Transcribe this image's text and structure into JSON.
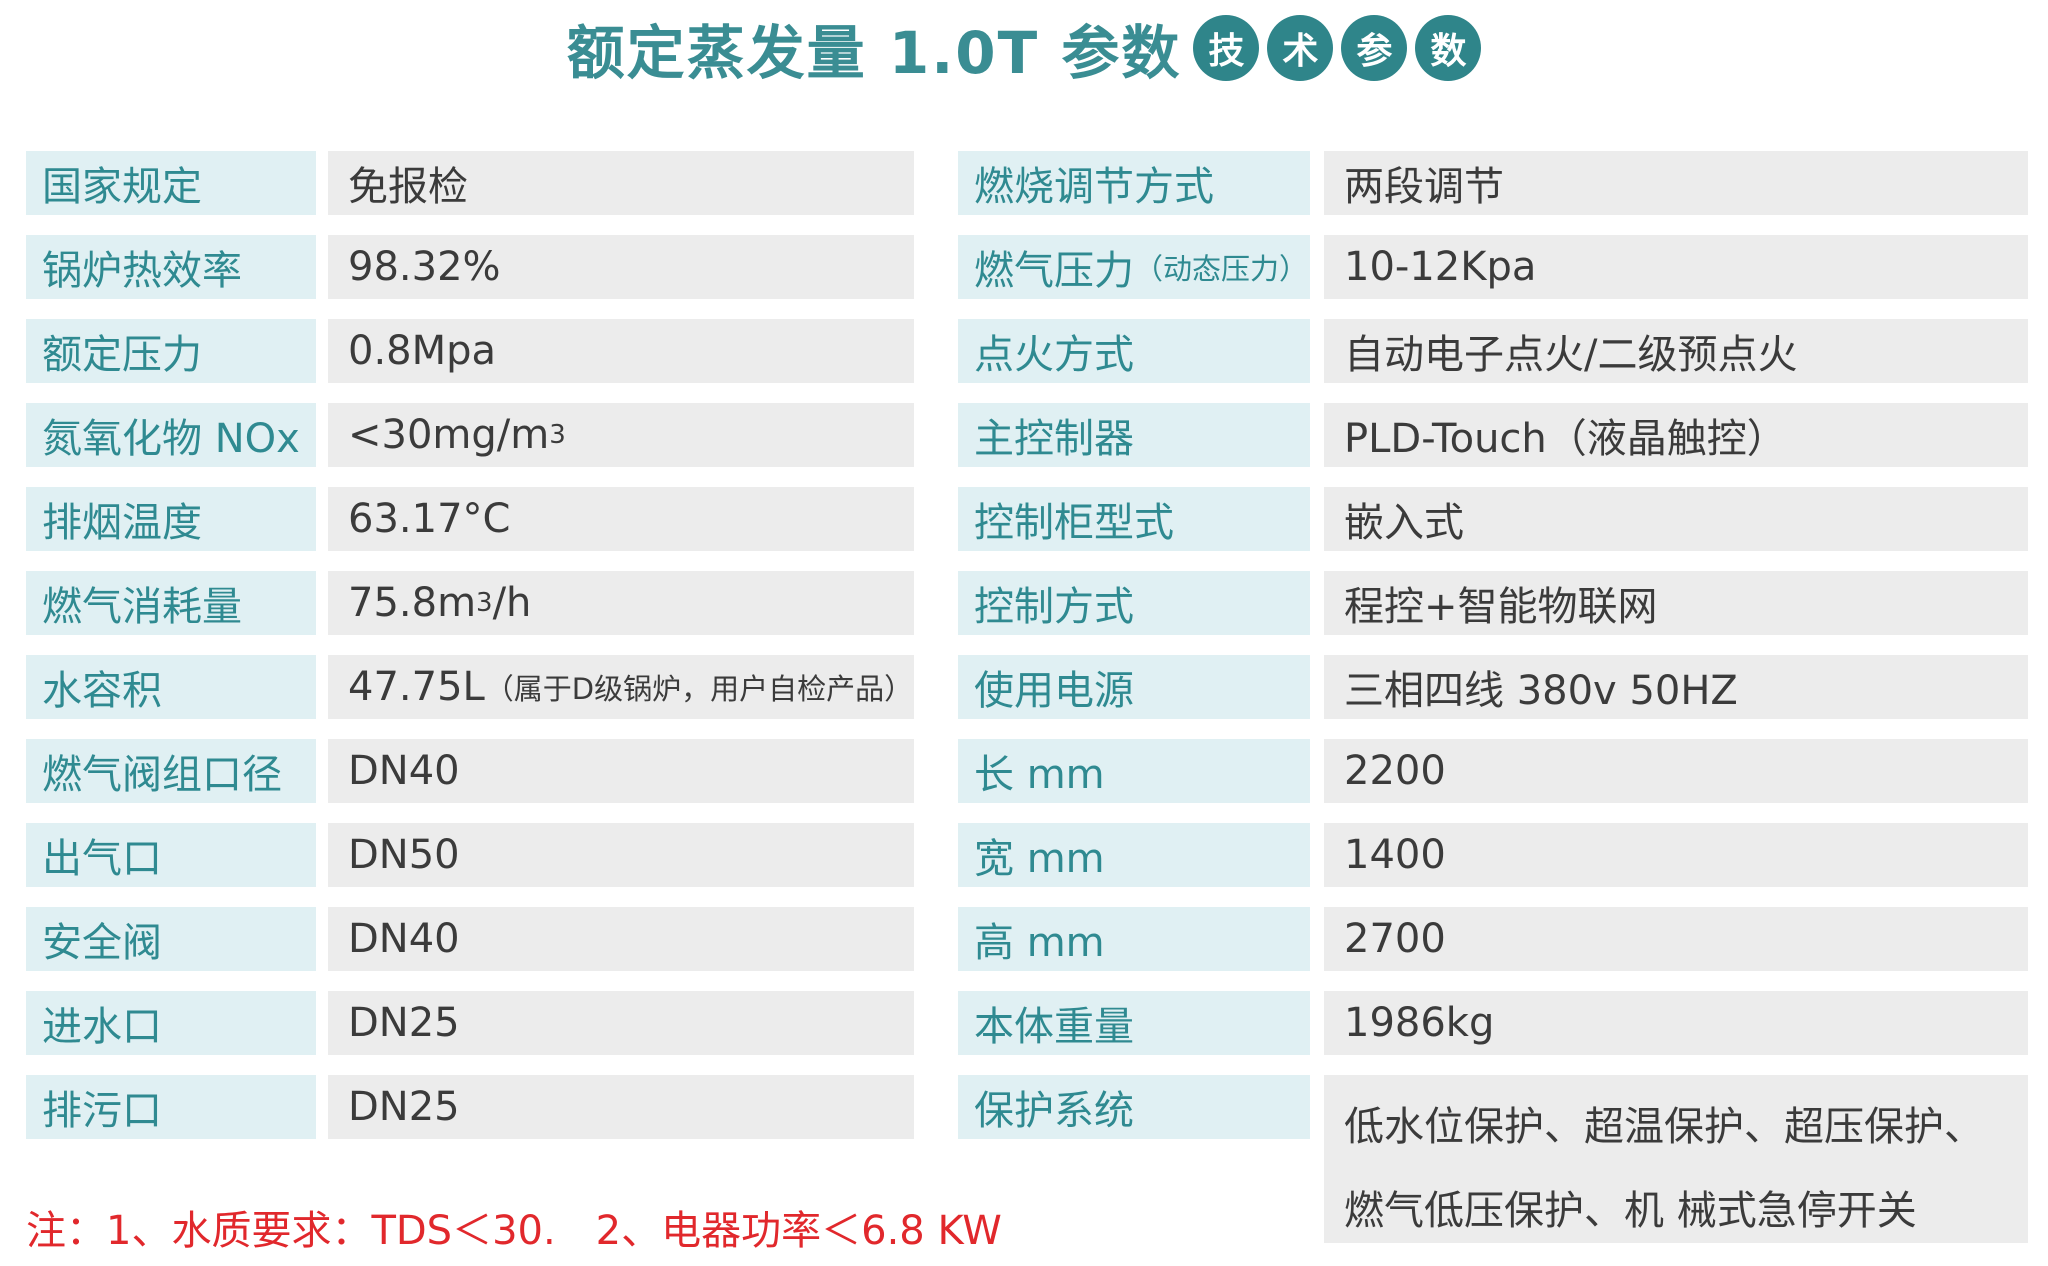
{
  "title": {
    "main": "额定蒸发量 1.0T 参数",
    "badges": [
      "技",
      "术",
      "参",
      "数"
    ]
  },
  "left_rows": [
    {
      "label": "国家规定",
      "value": "免报检"
    },
    {
      "label": "锅炉热效率",
      "value": "98.32%"
    },
    {
      "label": "额定压力",
      "value": "0.8Mpa"
    },
    {
      "label": "氮氧化物 NOx",
      "value": "<30mg/m",
      "value_sup": "3"
    },
    {
      "label": "排烟温度",
      "value": "63.17°C"
    },
    {
      "label": "燃气消耗量",
      "value": "75.8m",
      "value_sup": "3",
      "value_after": "/h"
    },
    {
      "label": "水容积",
      "value": "47.75L",
      "value_small": "（属于D级锅炉，用户自检产品）"
    },
    {
      "label": "燃气阀组口径",
      "value": "DN40"
    },
    {
      "label": "出气口",
      "value": "DN50"
    },
    {
      "label": "安全阀",
      "value": "DN40"
    },
    {
      "label": "进水口",
      "value": "DN25"
    },
    {
      "label": "排污口",
      "value": "DN25"
    }
  ],
  "right_rows": [
    {
      "label": "燃烧调节方式",
      "value": "两段调节"
    },
    {
      "label": "燃气压力",
      "label_small": "（动态压力）",
      "value": "10-12Kpa"
    },
    {
      "label": "点火方式",
      "value": "自动电子点火/二级预点火"
    },
    {
      "label": "主控制器",
      "value": "PLD-Touch（液晶触控）"
    },
    {
      "label": "控制柜型式",
      "value": "嵌入式"
    },
    {
      "label": "控制方式",
      "value": "程控+智能物联网"
    },
    {
      "label": "使用电源",
      "value": "三相四线 380v 50HZ"
    },
    {
      "label": "长 mm",
      "value": "2200"
    },
    {
      "label": "宽 mm",
      "value": "1400"
    },
    {
      "label": "高 mm",
      "value": "2700"
    },
    {
      "label": "本体重量",
      "value": "1986kg"
    },
    {
      "label": "保护系统",
      "value": "低水位保护、超温保护、超压保护、",
      "value_line2": "燃气低压保护、机 械式急停开关"
    }
  ],
  "note": "注：1、水质要求：TDS＜30.　2、电器功率＜6.8 KW"
}
